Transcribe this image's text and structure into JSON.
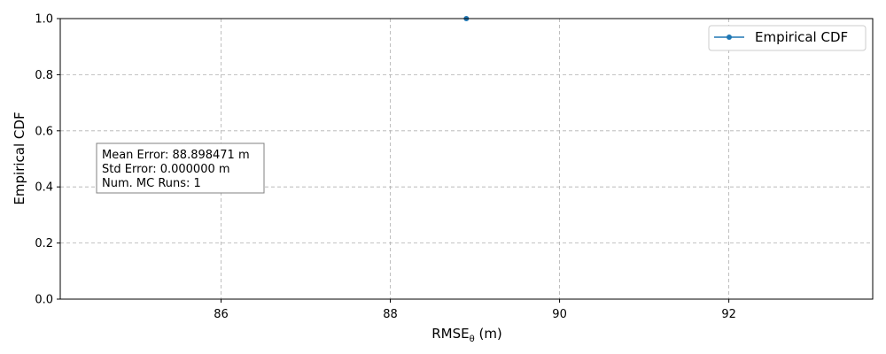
{
  "chart_data": {
    "type": "line",
    "xlabel_main": "RMSE",
    "xlabel_sub": "θ",
    "xlabel_unit": " (m)",
    "ylabel": "Empirical CDF",
    "xlim": [
      84.1,
      93.7
    ],
    "ylim": [
      0.0,
      1.0
    ],
    "x_ticks": [
      86,
      88,
      90,
      92
    ],
    "y_ticks": [
      0.0,
      0.2,
      0.4,
      0.6,
      0.8,
      1.0
    ],
    "x_tick_labels": [
      "86",
      "88",
      "90",
      "92"
    ],
    "y_tick_labels": [
      "0.0",
      "0.2",
      "0.4",
      "0.6",
      "0.8",
      "1.0"
    ],
    "grid": true,
    "legend_position": "top-right",
    "series": [
      {
        "name": "Empirical CDF",
        "color": "#1f77b4",
        "x": [
          88.898471
        ],
        "y": [
          1.0
        ]
      }
    ],
    "annotation_lines": [
      "Mean Error: 88.898471 m",
      "Std Error: 0.000000 m",
      "Num. MC Runs: 1"
    ]
  }
}
